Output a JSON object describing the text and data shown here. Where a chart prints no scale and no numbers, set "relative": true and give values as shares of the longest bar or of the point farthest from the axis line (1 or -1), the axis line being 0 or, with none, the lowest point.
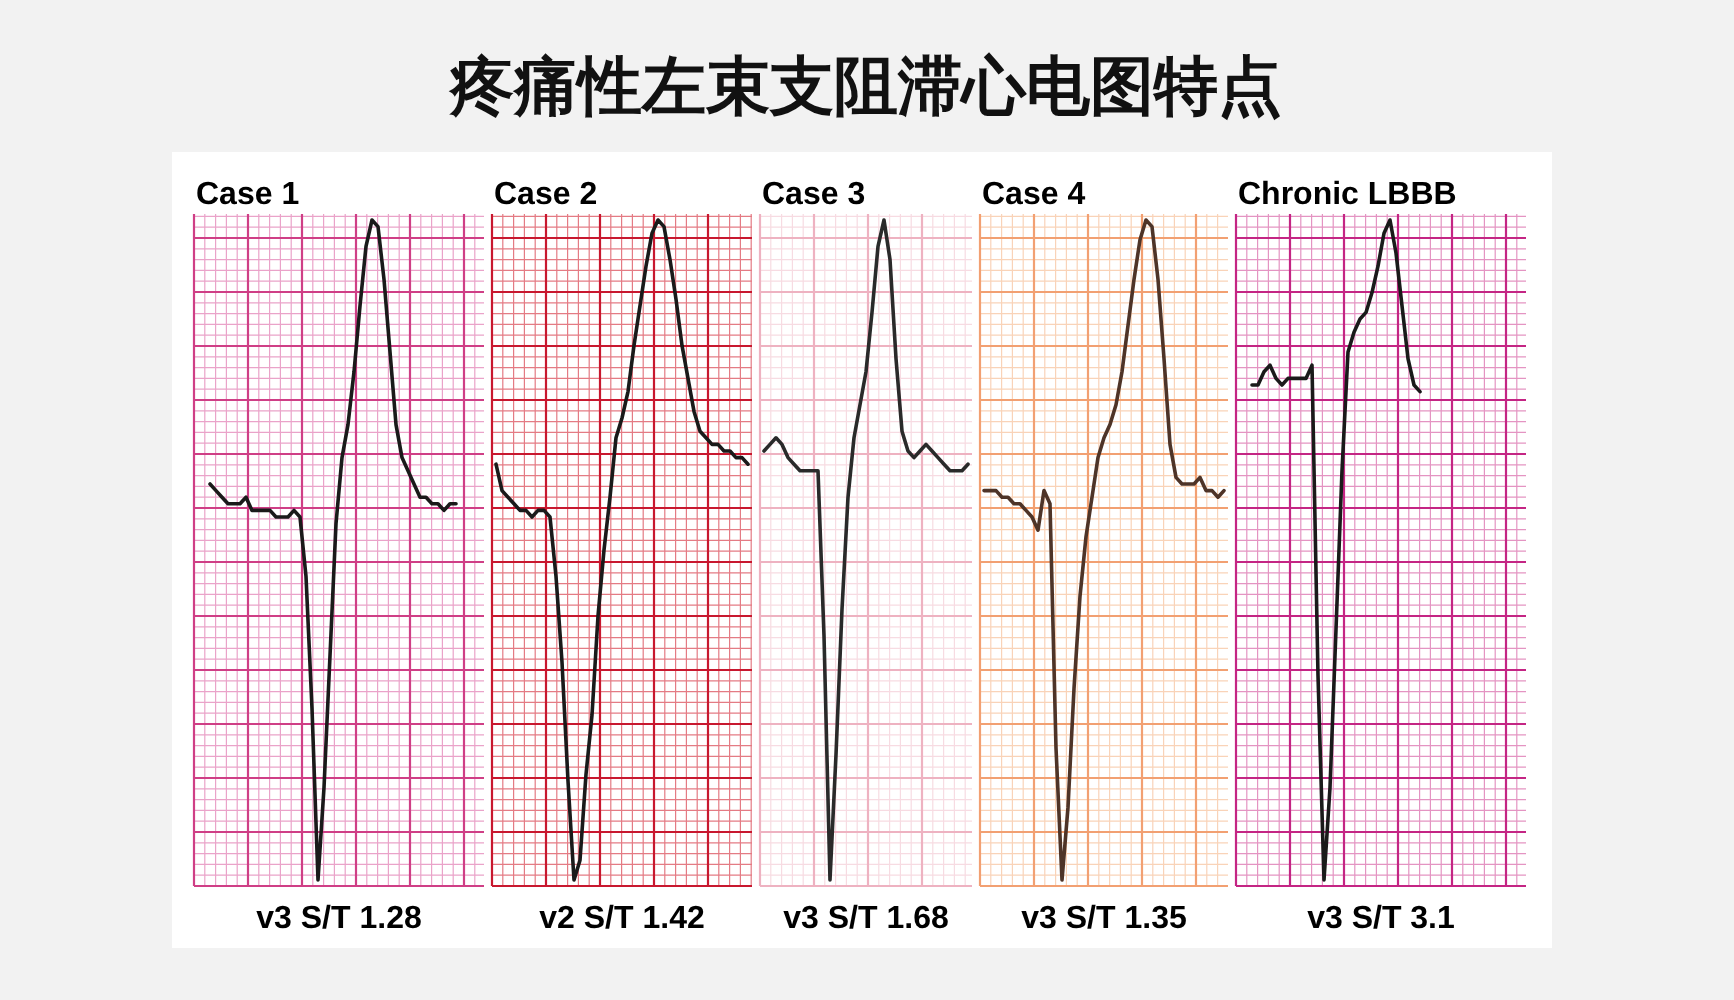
{
  "chart_data": [
    {
      "type": "other",
      "title": "疼痛性左束支阻滞心电图特点"
    },
    {
      "type": "line",
      "title": "Case 1",
      "relative": true,
      "grid": true,
      "annotations": [
        "v3 S/T 1.28"
      ],
      "categories": [
        null,
        null,
        null,
        null,
        null,
        null,
        null,
        null,
        null,
        null,
        null,
        null,
        null,
        null,
        null,
        null,
        null,
        null,
        null,
        null,
        null,
        null,
        null,
        null,
        null,
        null,
        null,
        null,
        null,
        null,
        null,
        null,
        null,
        null,
        null,
        null,
        null,
        null,
        null,
        null,
        null,
        null,
        null,
        null,
        null,
        null,
        null,
        null
      ],
      "series": [
        {
          "color": "#1a1a1a",
          "values": [
            null,
            null,
            0.6,
            0.59,
            0.58,
            0.57,
            0.57,
            0.57,
            0.58,
            0.56,
            0.56,
            0.56,
            0.56,
            0.55,
            0.55,
            0.55,
            0.56,
            0.55,
            0.46,
            0.26,
            0,
            0.14,
            0.34,
            0.54,
            0.64,
            0.69,
            0.77,
            0.87,
            0.96,
            1,
            0.99,
            0.91,
            0.8,
            0.69,
            0.64,
            0.62,
            0.6,
            0.58,
            0.58,
            0.57,
            0.57,
            0.56,
            0.57,
            0.57,
            null,
            null,
            null,
            null
          ]
        }
      ]
    },
    {
      "type": "line",
      "title": "Case 2",
      "relative": true,
      "grid": true,
      "annotations": [
        "v2 S/T 1.42"
      ],
      "categories": [
        null,
        null,
        null,
        null,
        null,
        null,
        null,
        null,
        null,
        null,
        null,
        null,
        null,
        null,
        null,
        null,
        null,
        null,
        null,
        null,
        null,
        null,
        null,
        null,
        null,
        null,
        null,
        null,
        null,
        null,
        null,
        null,
        null,
        null,
        null,
        null,
        null,
        null,
        null,
        null,
        null,
        null,
        null
      ],
      "series": [
        {
          "color": "#1a1a1a",
          "values": [
            0.63,
            0.59,
            0.58,
            0.57,
            0.56,
            0.56,
            0.55,
            0.56,
            0.56,
            0.55,
            0.46,
            0.33,
            0.15,
            0,
            0.03,
            0.16,
            0.25,
            0.4,
            0.5,
            0.58,
            0.67,
            0.7,
            0.74,
            0.81,
            0.87,
            0.93,
            0.98,
            1,
            0.99,
            0.94,
            0.88,
            0.81,
            0.76,
            0.71,
            0.68,
            0.67,
            0.66,
            0.66,
            0.65,
            0.65,
            0.64,
            0.64,
            0.63
          ]
        }
      ]
    },
    {
      "type": "line",
      "title": "Case 3",
      "relative": true,
      "grid": true,
      "annotations": [
        "v3 S/T 1.68"
      ],
      "categories": [
        null,
        null,
        null,
        null,
        null,
        null,
        null,
        null,
        null,
        null,
        null,
        null,
        null,
        null,
        null,
        null,
        null,
        null,
        null,
        null,
        null,
        null,
        null,
        null,
        null,
        null,
        null,
        null,
        null,
        null,
        null,
        null,
        null,
        null,
        null
      ],
      "series": [
        {
          "color": "#2a2a2a",
          "values": [
            0.65,
            0.66,
            0.67,
            0.66,
            0.64,
            0.63,
            0.62,
            0.62,
            0.62,
            0.62,
            0.37,
            0,
            0.19,
            0.41,
            0.58,
            0.67,
            0.72,
            0.77,
            0.86,
            0.96,
            1,
            0.94,
            0.79,
            0.68,
            0.65,
            0.64,
            0.65,
            0.66,
            0.65,
            0.64,
            0.63,
            0.62,
            0.62,
            0.62,
            0.63
          ]
        }
      ]
    },
    {
      "type": "line",
      "title": "Case 4",
      "relative": true,
      "grid": true,
      "annotations": [
        "v3 S/T 1.35"
      ],
      "categories": [
        null,
        null,
        null,
        null,
        null,
        null,
        null,
        null,
        null,
        null,
        null,
        null,
        null,
        null,
        null,
        null,
        null,
        null,
        null,
        null,
        null,
        null,
        null,
        null,
        null,
        null,
        null,
        null,
        null,
        null,
        null,
        null,
        null,
        null,
        null,
        null,
        null,
        null,
        null,
        null,
        null
      ],
      "series": [
        {
          "color": "#4e3428",
          "values": [
            0.59,
            0.59,
            0.59,
            0.58,
            0.58,
            0.57,
            0.57,
            0.56,
            0.55,
            0.53,
            0.59,
            0.57,
            0.2,
            0,
            0.11,
            0.29,
            0.43,
            0.52,
            0.58,
            0.64,
            0.67,
            0.69,
            0.72,
            0.77,
            0.84,
            0.91,
            0.97,
            1,
            0.99,
            0.91,
            0.79,
            0.66,
            0.61,
            0.6,
            0.6,
            0.6,
            0.61,
            0.59,
            0.59,
            0.58,
            0.59
          ]
        }
      ]
    },
    {
      "type": "line",
      "title": "Chronic LBBB",
      "relative": true,
      "grid": true,
      "annotations": [
        "v3 S/T 3.1"
      ],
      "categories": [
        null,
        null,
        null,
        null,
        null,
        null,
        null,
        null,
        null,
        null,
        null,
        null,
        null,
        null,
        null,
        null,
        null,
        null,
        null,
        null,
        null,
        null,
        null,
        null,
        null,
        null,
        null,
        null,
        null,
        null,
        null,
        null,
        null,
        null,
        null,
        null,
        null,
        null,
        null,
        null,
        null,
        null,
        null,
        null,
        null,
        null,
        null,
        null
      ],
      "series": [
        {
          "color": "#1a1a1a",
          "values": [
            null,
            null,
            0.75,
            0.75,
            0.77,
            0.78,
            0.76,
            0.75,
            0.76,
            0.76,
            0.76,
            0.76,
            0.78,
            0.31,
            0,
            0.14,
            0.38,
            0.62,
            0.8,
            0.83,
            0.85,
            0.86,
            0.89,
            0.93,
            0.98,
            1,
            0.95,
            0.87,
            0.79,
            0.75,
            0.74,
            null,
            null,
            null,
            null,
            null,
            null,
            null,
            null,
            null,
            null,
            null,
            null,
            null,
            null,
            null,
            null,
            null
          ]
        }
      ]
    }
  ]
}
